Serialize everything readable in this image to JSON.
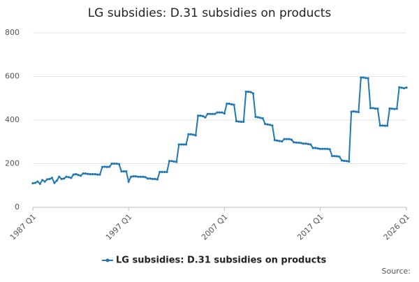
{
  "chart_data": {
    "type": "line",
    "title": "LG subsidies: D.31 subsidies on products",
    "categories": [
      "1987 Q1",
      null,
      null,
      null,
      null,
      null,
      null,
      null,
      null,
      null,
      null,
      null,
      null,
      null,
      null,
      null,
      null,
      null,
      null,
      null,
      null,
      null,
      null,
      null,
      null,
      null,
      null,
      null,
      null,
      null,
      null,
      null,
      null,
      null,
      null,
      null,
      null,
      null,
      null,
      null,
      "1997 Q1",
      null,
      null,
      null,
      null,
      null,
      null,
      null,
      null,
      null,
      null,
      null,
      null,
      null,
      null,
      null,
      null,
      null,
      null,
      null,
      null,
      null,
      null,
      null,
      null,
      null,
      null,
      null,
      null,
      null,
      null,
      null,
      null,
      null,
      null,
      null,
      null,
      null,
      null,
      null,
      "2007 Q1",
      null,
      null,
      null,
      null,
      null,
      null,
      null,
      null,
      null,
      null,
      null,
      null,
      null,
      null,
      null,
      null,
      null,
      null,
      null,
      null,
      null,
      null,
      null,
      null,
      null,
      null,
      null,
      null,
      null,
      null,
      null,
      null,
      null,
      null,
      null,
      null,
      null,
      null,
      null,
      "2017 Q1",
      null,
      null,
      null,
      null,
      null,
      null,
      null,
      null,
      null,
      null,
      null,
      null,
      null,
      null,
      null,
      null,
      null,
      null,
      null,
      null,
      null,
      null,
      null,
      null,
      null,
      null,
      null,
      null,
      null,
      null,
      null,
      null,
      null,
      null,
      null,
      "2026 Q1"
    ],
    "series": [
      {
        "name": "LG subsidies: D.31 subsidies on products",
        "color": "#1f78b4",
        "values": [
          110,
          112,
          118,
          108,
          125,
          118,
          128,
          130,
          135,
          112,
          122,
          140,
          130,
          132,
          140,
          138,
          135,
          150,
          152,
          148,
          145,
          155,
          155,
          153,
          152,
          152,
          152,
          150,
          150,
          185,
          186,
          185,
          186,
          200,
          200,
          200,
          198,
          165,
          165,
          165,
          118,
          140,
          142,
          142,
          140,
          140,
          140,
          138,
          132,
          132,
          130,
          130,
          128,
          162,
          162,
          162,
          162,
          212,
          212,
          210,
          208,
          288,
          288,
          288,
          288,
          335,
          335,
          333,
          330,
          420,
          420,
          418,
          412,
          428,
          428,
          428,
          428,
          435,
          435,
          435,
          430,
          475,
          475,
          472,
          470,
          395,
          393,
          392,
          392,
          530,
          530,
          528,
          522,
          415,
          413,
          410,
          408,
          382,
          380,
          378,
          375,
          308,
          306,
          304,
          302,
          313,
          313,
          313,
          310,
          298,
          297,
          296,
          295,
          292,
          292,
          290,
          288,
          272,
          272,
          270,
          268,
          268,
          268,
          268,
          266,
          235,
          235,
          234,
          232,
          215,
          213,
          212,
          210,
          438,
          440,
          438,
          437,
          595,
          595,
          593,
          592,
          455,
          455,
          453,
          452,
          375,
          375,
          374,
          374,
          453,
          452,
          451,
          452,
          550,
          548,
          546,
          549
        ]
      }
    ],
    "ylim": [
      0,
      800
    ],
    "yticks": [
      0,
      200,
      400,
      600,
      800
    ],
    "grid": true,
    "source": "Source:"
  }
}
